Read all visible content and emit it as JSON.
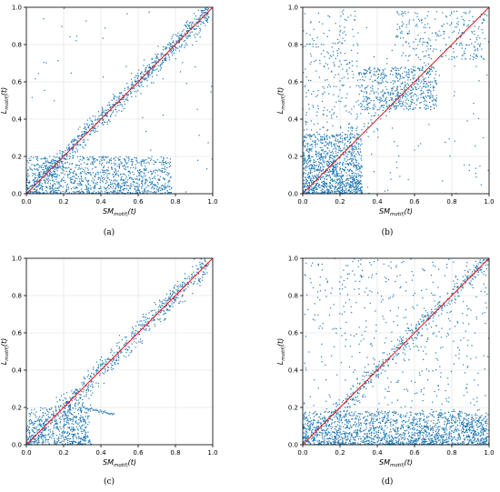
{
  "figure": {
    "panels": [
      {
        "id": "a",
        "caption": "(a)"
      },
      {
        "id": "b",
        "caption": "(b)"
      },
      {
        "id": "c",
        "caption": "(c)"
      },
      {
        "id": "d",
        "caption": "(d)"
      }
    ]
  },
  "chart_data": [
    {
      "type": "scatter",
      "panel": "(a)",
      "xlabel": "SM_motif_i(t)",
      "ylabel": "L_motif_i(t)",
      "xlim": [
        0,
        1
      ],
      "ylim": [
        0,
        1
      ],
      "xticks": [
        "0.0",
        "0.2",
        "0.4",
        "0.6",
        "0.8",
        "1.0"
      ],
      "yticks": [
        "0.0",
        "0.2",
        "0.4",
        "0.6",
        "0.8",
        "1.0"
      ],
      "grid": true,
      "reference_line": {
        "x": [
          0,
          1
        ],
        "y": [
          0,
          1
        ],
        "color": "#e41a1c"
      },
      "point_color": "#1f77b4",
      "clusters": [
        {
          "shape": "band",
          "x_range": [
            0.0,
            0.98
          ],
          "slope": 1.0,
          "intercept": 0.0,
          "spread": 0.03,
          "n": 900
        },
        {
          "shape": "box",
          "x_range": [
            0.0,
            0.78
          ],
          "y_range": [
            0.0,
            0.2
          ],
          "n": 1100
        },
        {
          "shape": "box",
          "x_range": [
            0.0,
            1.0
          ],
          "y_range": [
            0.0,
            1.0
          ],
          "n": 60
        }
      ]
    },
    {
      "type": "scatter",
      "panel": "(b)",
      "xlabel": "SM_motif_i(t)",
      "ylabel": "L_motif_i(t)",
      "xlim": [
        0,
        1
      ],
      "ylim": [
        0,
        1
      ],
      "xticks": [
        "0.0",
        "0.2",
        "0.4",
        "0.6",
        "0.8",
        "1.0"
      ],
      "yticks": [
        "0.0",
        "0.2",
        "0.4",
        "0.6",
        "0.8",
        "1.0"
      ],
      "grid": true,
      "reference_line": {
        "x": [
          0,
          1
        ],
        "y": [
          0,
          1
        ],
        "color": "#e41a1c"
      },
      "point_color": "#1f77b4",
      "clusters": [
        {
          "shape": "box",
          "x_range": [
            0.0,
            0.32
          ],
          "y_range": [
            0.0,
            0.32
          ],
          "n": 1100
        },
        {
          "shape": "box",
          "x_range": [
            0.3,
            0.72
          ],
          "y_range": [
            0.45,
            0.68
          ],
          "n": 500
        },
        {
          "shape": "box",
          "x_range": [
            0.5,
            0.98
          ],
          "y_range": [
            0.72,
            0.98
          ],
          "n": 250
        },
        {
          "shape": "box",
          "x_range": [
            0.0,
            0.3
          ],
          "y_range": [
            0.3,
            0.98
          ],
          "n": 220
        },
        {
          "shape": "band",
          "x_range": [
            0.0,
            0.7
          ],
          "slope": 1.0,
          "intercept": 0.0,
          "spread": 0.05,
          "n": 200
        },
        {
          "shape": "box",
          "x_range": [
            0.0,
            1.0
          ],
          "y_range": [
            0.0,
            1.0
          ],
          "n": 120
        }
      ]
    },
    {
      "type": "scatter",
      "panel": "(c)",
      "xlabel": "SM_motif_i(t)",
      "ylabel": "L_motif_i(t)",
      "xlim": [
        0,
        1
      ],
      "ylim": [
        0,
        1
      ],
      "xticks": [
        "0.0",
        "0.2",
        "0.4",
        "0.6",
        "0.8",
        "1.0"
      ],
      "yticks": [
        "0.0",
        "0.2",
        "0.4",
        "0.6",
        "0.8",
        "1.0"
      ],
      "grid": true,
      "reference_line": {
        "x": [
          0,
          1
        ],
        "y": [
          0,
          1
        ],
        "color": "#e41a1c"
      },
      "point_color": "#1f77b4",
      "clusters": [
        {
          "shape": "band",
          "x_range": [
            0.0,
            0.98
          ],
          "slope": 1.0,
          "intercept": 0.0,
          "spread": 0.035,
          "n": 700
        },
        {
          "shape": "box",
          "x_range": [
            0.0,
            0.32
          ],
          "y_range": [
            0.0,
            0.2
          ],
          "n": 400
        },
        {
          "shape": "box",
          "x_range": [
            0.2,
            0.35
          ],
          "y_range": [
            0.0,
            0.3
          ],
          "n": 150
        },
        {
          "shape": "curve",
          "x_range": [
            0.3,
            0.47
          ],
          "y_start": 0.2,
          "y_end": 0.16,
          "n": 40
        }
      ]
    },
    {
      "type": "scatter",
      "panel": "(d)",
      "xlabel": "SM_motif_i(t)",
      "ylabel": "L_motif_i(t)",
      "xlim": [
        0,
        1
      ],
      "ylim": [
        0,
        1
      ],
      "xticks": [
        "0.0",
        "0.2",
        "0.4",
        "0.6",
        "0.8",
        "1.0"
      ],
      "yticks": [
        "0.0",
        "0.2",
        "0.4",
        "0.6",
        "0.8",
        "1.0"
      ],
      "grid": true,
      "reference_line": {
        "x": [
          0,
          1
        ],
        "y": [
          0,
          1
        ],
        "color": "#e41a1c"
      },
      "point_color": "#1f77b4",
      "clusters": [
        {
          "shape": "box",
          "x_range": [
            0.0,
            1.0
          ],
          "y_range": [
            0.0,
            0.18
          ],
          "n": 1800
        },
        {
          "shape": "band",
          "x_range": [
            0.0,
            1.0
          ],
          "slope": 1.0,
          "intercept": 0.0,
          "spread": 0.03,
          "n": 500
        },
        {
          "shape": "box",
          "x_range": [
            0.0,
            1.0
          ],
          "y_range": [
            0.18,
            1.0
          ],
          "n": 450
        }
      ]
    }
  ]
}
